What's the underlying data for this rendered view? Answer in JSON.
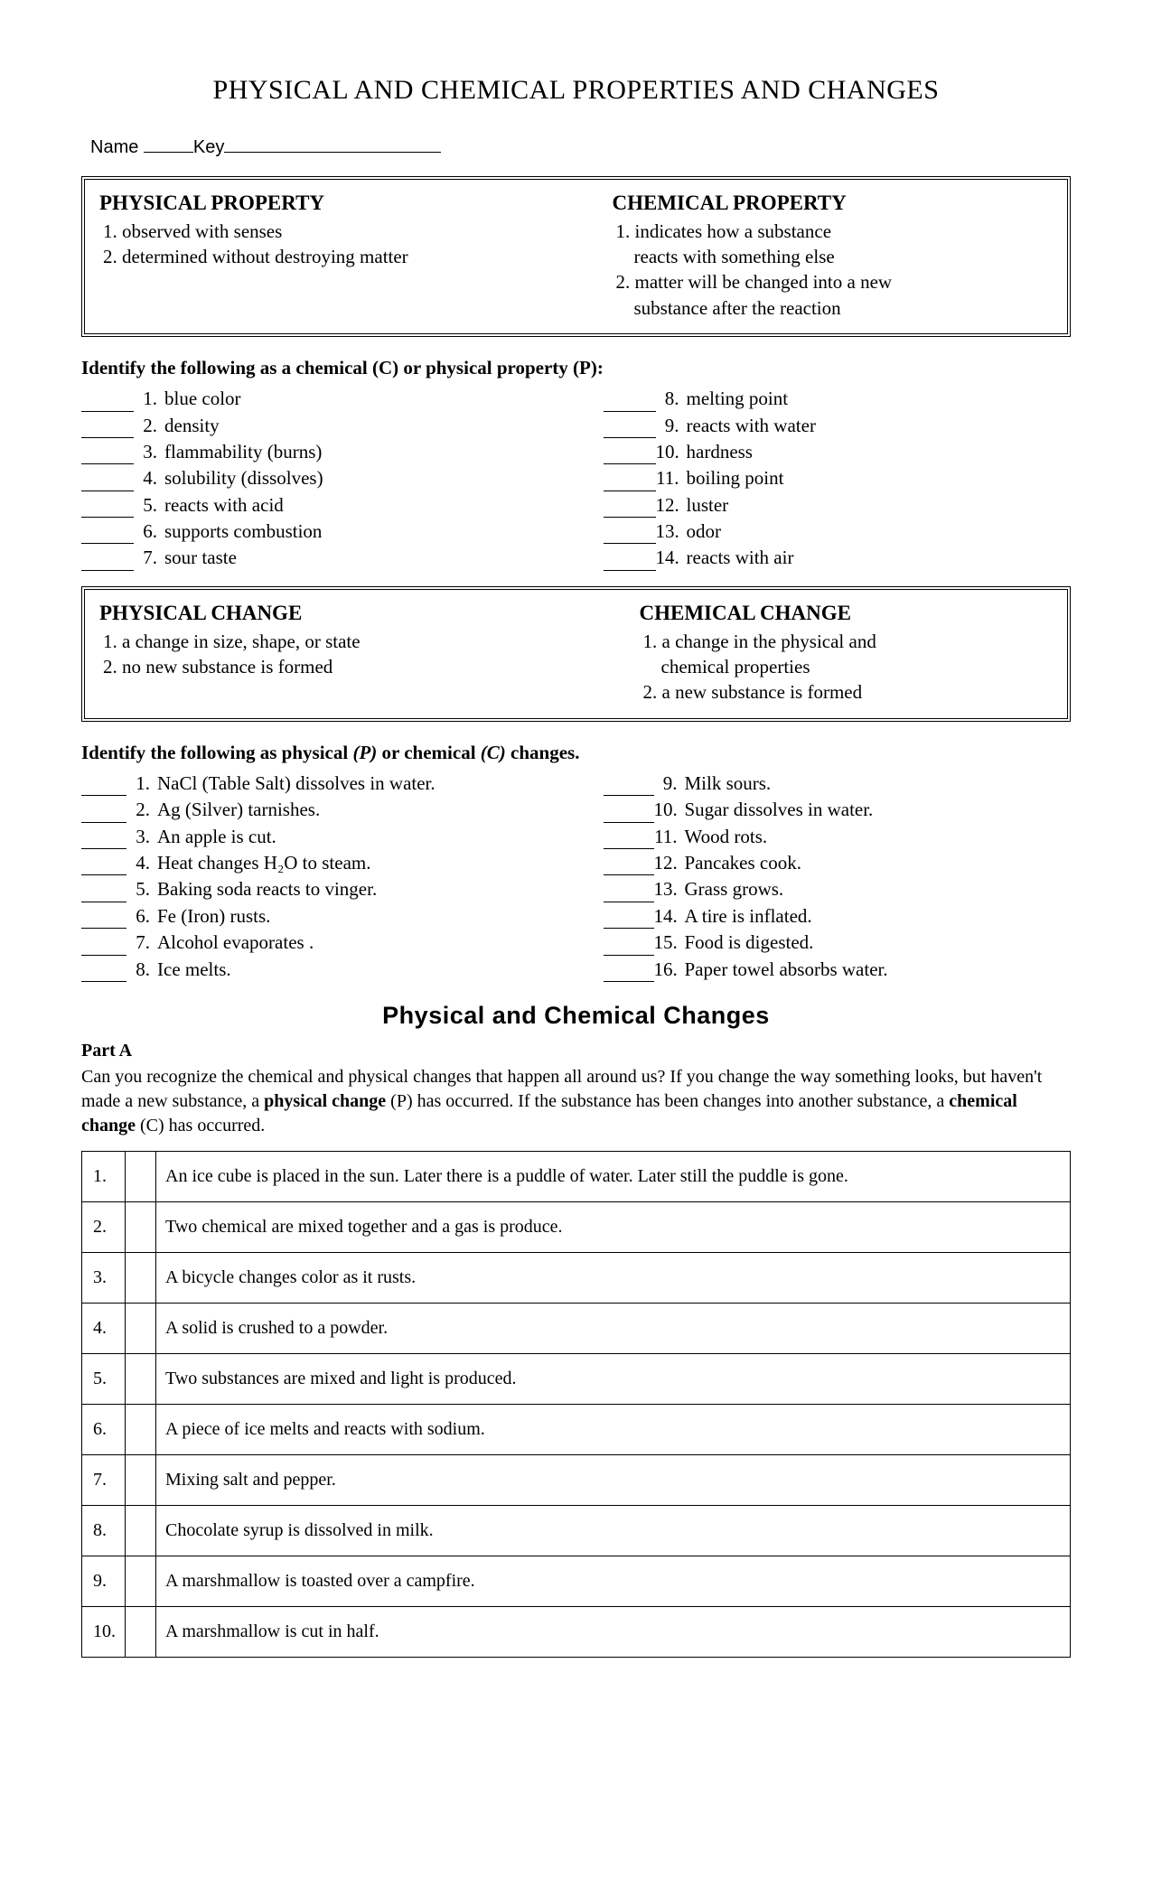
{
  "title": "PHYSICAL AND CHEMICAL PROPERTIES AND CHANGES",
  "name_label": "Name",
  "key_label": "Key",
  "defs1": {
    "left": {
      "heading": "PHYSICAL PROPERTY",
      "lines": [
        "1. observed with senses",
        "2. determined without destroying matter"
      ]
    },
    "right": {
      "heading": "CHEMICAL PROPERTY",
      "lines": [
        "1.  indicates how a substance",
        "    reacts with something else",
        "2. matter will be changed into a new",
        "    substance after the reaction"
      ],
      "indent": [
        false,
        true,
        false,
        true
      ]
    }
  },
  "prompt1": "Identify the following as a chemical (C) or physical property (P):",
  "props_left": [
    {
      "n": "1.",
      "t": "blue color"
    },
    {
      "n": "2.",
      "t": "density"
    },
    {
      "n": "3.",
      "t": "flammability (burns)"
    },
    {
      "n": "4.",
      "t": "solubility (dissolves)"
    },
    {
      "n": "5.",
      "t": "reacts with acid"
    },
    {
      "n": "6.",
      "t": "supports combustion"
    },
    {
      "n": "7.",
      "t": "sour taste"
    }
  ],
  "props_right": [
    {
      "n": "8.",
      "t": "melting point"
    },
    {
      "n": "9.",
      "t": "reacts with water"
    },
    {
      "n": "10.",
      "t": "hardness"
    },
    {
      "n": "11.",
      "t": "boiling point"
    },
    {
      "n": "12.",
      "t": "luster"
    },
    {
      "n": "13.",
      "t": "odor"
    },
    {
      "n": "14.",
      "t": "reacts with air"
    }
  ],
  "defs2": {
    "left": {
      "heading": "PHYSICAL CHANGE",
      "lines": [
        "1.  a change in size, shape, or state",
        "2.  no new substance is formed"
      ]
    },
    "right": {
      "heading": "CHEMICAL CHANGE",
      "lines": [
        "1.  a change in the physical and",
        "     chemical properties",
        "2.  a new substance is formed"
      ],
      "indent": [
        false,
        true,
        false
      ]
    }
  },
  "prompt2_a": "Identify the following as physical ",
  "prompt2_b": "(P)",
  "prompt2_c": " or chemical ",
  "prompt2_d": "(C)",
  "prompt2_e": " changes.",
  "changes_left": [
    {
      "n": "1.",
      "t": "NaCl (Table Salt) dissolves in water."
    },
    {
      "n": "2.",
      "t": "Ag (Silver) tarnishes."
    },
    {
      "n": "3.",
      "t": "An apple is cut."
    },
    {
      "n": "4.",
      "t": "Heat changes H₂O to steam."
    },
    {
      "n": "5.",
      "t": "Baking soda reacts to vinger."
    },
    {
      "n": "6.",
      "t": "Fe (Iron) rusts."
    },
    {
      "n": "7.",
      "t": "Alcohol evaporates  ."
    },
    {
      "n": "8.",
      "t": "Ice melts."
    }
  ],
  "changes_right": [
    {
      "n": "9.",
      "t": "Milk sours."
    },
    {
      "n": "10.",
      "t": "Sugar dissolves in water."
    },
    {
      "n": "11.",
      "t": "Wood rots."
    },
    {
      "n": "12.",
      "t": "Pancakes cook."
    },
    {
      "n": "13.",
      "t": "Grass grows."
    },
    {
      "n": "14.",
      "t": "A tire is inflated."
    },
    {
      "n": "15.",
      "t": "Food is digested."
    },
    {
      "n": "16.",
      "t": "Paper towel absorbs water."
    }
  ],
  "part_title": "Physical and Chemical Changes",
  "part_a_label": "Part A",
  "part_a_para_1": "Can you recognize the chemical and physical changes that happen all around us?  If you change the way something looks, but haven't made a new substance, a ",
  "part_a_bold_1": "physical change",
  "part_a_para_2": " (P) has occurred.  If the substance has been changes into another substance, a ",
  "part_a_bold_2": "chemical change",
  "part_a_para_3": " (C) has occurred.",
  "table_rows": [
    {
      "n": "1.",
      "t": "An ice cube is placed in the sun.  Later there is a puddle of water.  Later still the puddle is gone."
    },
    {
      "n": "2.",
      "t": "Two chemical are mixed together and a gas is produce."
    },
    {
      "n": "3.",
      "t": "A bicycle changes color as it rusts."
    },
    {
      "n": "4.",
      "t": "A solid is crushed to a powder."
    },
    {
      "n": "5.",
      "t": "Two substances are mixed and light is produced."
    },
    {
      "n": "6.",
      "t": "A piece of ice melts and reacts with sodium."
    },
    {
      "n": "7.",
      "t": "Mixing salt and pepper."
    },
    {
      "n": "8.",
      "t": "Chocolate syrup is dissolved in milk."
    },
    {
      "n": "9.",
      "t": "A marshmallow is toasted over a campfire."
    },
    {
      "n": "10.",
      "t": "A marshmallow is cut in half."
    }
  ]
}
